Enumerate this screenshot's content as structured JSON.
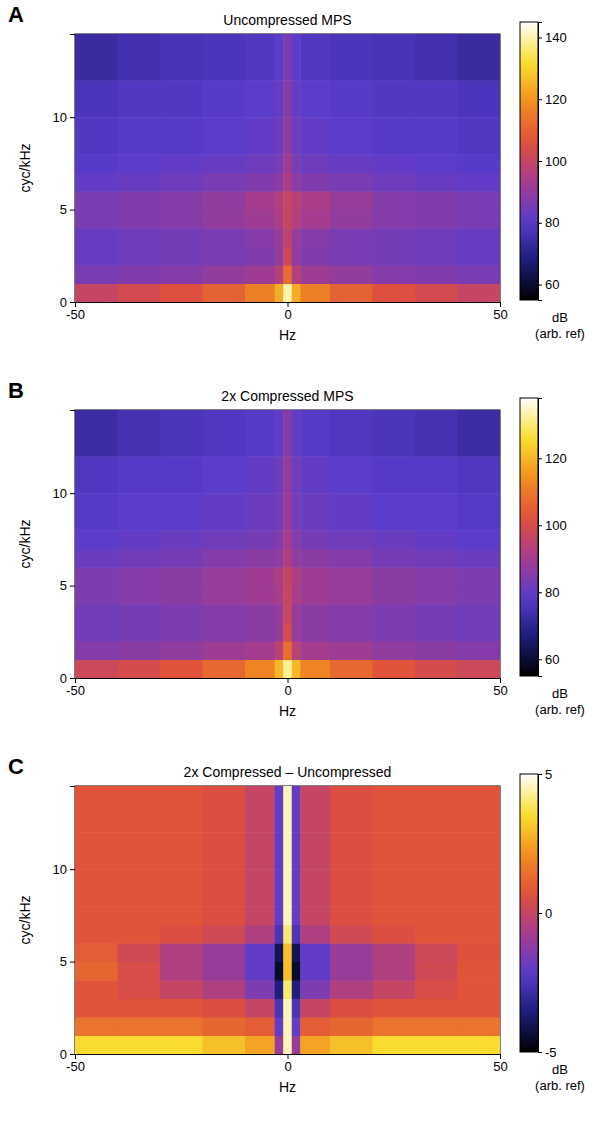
{
  "chart_data": [
    {
      "type": "heatmap",
      "panel": "A",
      "title": "Uncompressed MPS",
      "x_label": "Hz",
      "y_label": "cyc/kHz",
      "xlim": [
        -50,
        50
      ],
      "xticks": [
        -50,
        0,
        50
      ],
      "ylim": [
        0,
        14.5
      ],
      "yticks": [
        0,
        5,
        10
      ],
      "x_edges": [
        -50,
        -40,
        -30,
        -20,
        -10,
        -3,
        -1,
        1,
        3,
        10,
        20,
        30,
        40,
        50
      ],
      "y_edges": [
        0,
        1,
        2,
        3,
        4,
        5,
        6,
        7,
        8,
        10,
        12,
        14.5
      ],
      "z": [
        [
          100,
          103,
          106,
          110,
          116,
          124,
          140,
          124,
          116,
          110,
          106,
          103,
          100
        ],
        [
          86,
          87,
          88,
          90,
          92,
          96,
          112,
          96,
          92,
          90,
          88,
          87,
          86
        ],
        [
          83,
          84,
          85,
          86,
          87,
          90,
          102,
          90,
          87,
          86,
          85,
          84,
          83
        ],
        [
          83,
          84,
          85,
          86,
          88,
          91,
          98,
          91,
          88,
          86,
          85,
          84,
          83
        ],
        [
          86,
          87,
          88,
          90,
          92,
          95,
          100,
          96,
          93,
          90,
          88,
          87,
          86
        ],
        [
          86,
          87,
          88,
          90,
          93,
          96,
          100,
          97,
          94,
          91,
          88,
          87,
          86
        ],
        [
          82,
          83,
          84,
          86,
          87,
          89,
          94,
          89,
          87,
          86,
          84,
          83,
          82
        ],
        [
          80,
          81,
          82,
          83,
          84,
          86,
          92,
          86,
          84,
          83,
          82,
          81,
          80
        ],
        [
          79,
          80,
          80,
          81,
          82,
          84,
          89,
          84,
          82,
          81,
          80,
          80,
          79
        ],
        [
          78,
          79,
          79,
          80,
          81,
          83,
          88,
          83,
          81,
          80,
          79,
          79,
          78
        ],
        [
          74,
          76,
          77,
          78,
          79,
          81,
          86,
          81,
          79,
          78,
          77,
          76,
          74
        ]
      ],
      "colorbar": {
        "range": [
          55,
          145
        ],
        "ticks": [
          60,
          80,
          100,
          120,
          140
        ],
        "label": [
          "dB",
          "(arb. ref)"
        ]
      }
    },
    {
      "type": "heatmap",
      "panel": "B",
      "title": "2x Compressed MPS",
      "x_label": "Hz",
      "y_label": "cyc/kHz",
      "xlim": [
        -50,
        50
      ],
      "xticks": [
        -50,
        0,
        50
      ],
      "ylim": [
        0,
        14.5
      ],
      "yticks": [
        0,
        5,
        10
      ],
      "x_edges": [
        -50,
        -40,
        -30,
        -20,
        -10,
        -3,
        -1,
        1,
        3,
        10,
        20,
        30,
        40,
        50
      ],
      "y_edges": [
        0,
        1,
        2,
        3,
        4,
        5,
        6,
        7,
        8,
        10,
        12,
        14.5
      ],
      "z": [
        [
          98,
          100,
          103,
          107,
          112,
          120,
          132,
          120,
          112,
          107,
          103,
          100,
          98
        ],
        [
          85,
          86,
          87,
          89,
          90,
          94,
          108,
          94,
          90,
          89,
          87,
          86,
          85
        ],
        [
          82,
          83,
          84,
          85,
          86,
          88,
          100,
          88,
          86,
          85,
          84,
          83,
          82
        ],
        [
          82,
          83,
          84,
          85,
          86,
          88,
          97,
          88,
          86,
          85,
          84,
          83,
          82
        ],
        [
          84,
          85,
          86,
          88,
          89,
          91,
          97,
          91,
          89,
          88,
          86,
          85,
          84
        ],
        [
          84,
          85,
          86,
          88,
          89,
          92,
          96,
          92,
          89,
          88,
          86,
          85,
          84
        ],
        [
          81,
          82,
          83,
          85,
          86,
          87,
          92,
          87,
          86,
          85,
          83,
          82,
          81
        ],
        [
          79,
          80,
          81,
          82,
          83,
          85,
          90,
          85,
          83,
          82,
          81,
          80,
          79
        ],
        [
          78,
          79,
          79,
          80,
          81,
          83,
          88,
          83,
          81,
          80,
          79,
          79,
          78
        ],
        [
          77,
          78,
          78,
          79,
          80,
          82,
          87,
          82,
          80,
          79,
          78,
          78,
          77
        ],
        [
          73,
          75,
          76,
          77,
          78,
          80,
          85,
          80,
          78,
          77,
          76,
          75,
          73
        ]
      ],
      "colorbar": {
        "range": [
          55,
          138
        ],
        "ticks": [
          60,
          80,
          100,
          120
        ],
        "label": [
          "dB",
          "(arb. ref)"
        ]
      }
    },
    {
      "type": "heatmap",
      "panel": "C",
      "title": "2x Compressed – Uncompressed",
      "x_label": "Hz",
      "y_label": "cyc/kHz",
      "xlim": [
        -50,
        50
      ],
      "xticks": [
        -50,
        0,
        50
      ],
      "ylim": [
        0,
        14.5
      ],
      "yticks": [
        0,
        5,
        10
      ],
      "x_edges": [
        -50,
        -40,
        -30,
        -20,
        -10,
        -3,
        -1,
        1,
        3,
        10,
        20,
        30,
        40,
        50
      ],
      "y_edges": [
        0,
        1,
        2,
        3,
        4,
        5,
        6,
        7,
        8,
        10,
        12,
        14.5
      ],
      "z": [
        [
          3.5,
          3.5,
          3.5,
          3,
          2.5,
          -1,
          4.5,
          -1,
          2.5,
          3,
          3.5,
          3.5,
          3.5
        ],
        [
          1.5,
          1.5,
          1.5,
          1.2,
          1,
          -2,
          4.5,
          -2,
          1,
          1.2,
          1.5,
          1.5,
          1.5
        ],
        [
          0.8,
          0.8,
          0.8,
          0.6,
          0,
          -2.5,
          4.5,
          -2.5,
          0,
          0.6,
          0.8,
          0.8,
          0.8
        ],
        [
          0.8,
          0.5,
          0,
          -0.5,
          -1.5,
          -3.5,
          4,
          -3.5,
          -1.5,
          -0.5,
          0,
          0.5,
          0.8
        ],
        [
          1.2,
          0.5,
          -0.5,
          -1,
          -2,
          -4.5,
          3,
          -4.5,
          -2,
          -1,
          -0.5,
          0.3,
          0.8
        ],
        [
          1,
          0.3,
          -0.5,
          -1,
          -2,
          -4,
          3,
          -4,
          -2,
          -1,
          -0.5,
          0.2,
          0.7
        ],
        [
          0.8,
          0.8,
          0.6,
          0.3,
          -0.5,
          -2.5,
          4,
          -2.5,
          -0.5,
          0.3,
          0.6,
          0.8,
          0.8
        ],
        [
          0.8,
          0.8,
          0.8,
          0.6,
          0,
          -2,
          4.5,
          -2,
          0,
          0.6,
          0.8,
          0.8,
          0.8
        ],
        [
          0.8,
          0.8,
          0.8,
          0.6,
          0,
          -2,
          4.5,
          -2,
          0,
          0.6,
          0.8,
          0.8,
          0.8
        ],
        [
          0.8,
          0.8,
          0.8,
          0.6,
          0,
          -2,
          4.5,
          -2,
          0,
          0.6,
          0.8,
          0.8,
          0.8
        ],
        [
          0.8,
          0.8,
          0.8,
          0.6,
          0,
          -2,
          4.5,
          -2,
          0,
          0.6,
          0.8,
          0.8,
          0.8
        ]
      ],
      "colorbar": {
        "range": [
          -5,
          5
        ],
        "ticks": [
          -5,
          0,
          5
        ],
        "label": [
          "dB",
          "(arb. ref)"
        ]
      }
    }
  ]
}
